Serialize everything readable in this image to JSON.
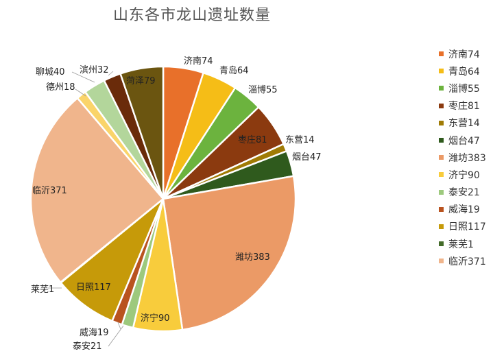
{
  "chart_data": {
    "type": "pie",
    "title": "山东各市龙山遗址数量",
    "categories": [
      "济南",
      "青岛",
      "淄博",
      "枣庄",
      "东营",
      "烟台",
      "潍坊",
      "济宁",
      "泰安",
      "威海",
      "日照",
      "莱芜",
      "临沂",
      "德州",
      "聊城",
      "滨州",
      "菏泽"
    ],
    "values": [
      74,
      64,
      55,
      81,
      14,
      47,
      383,
      90,
      21,
      19,
      117,
      1,
      371,
      18,
      40,
      32,
      79
    ],
    "colors": [
      "#e8702a",
      "#f5bd17",
      "#6cb33e",
      "#8b3a0f",
      "#a07b05",
      "#2f5a1d",
      "#eb9a66",
      "#f8cc3c",
      "#9dc97d",
      "#b9531f",
      "#c69a09",
      "#436b29",
      "#f0b58c",
      "#fad46a",
      "#b3d69b",
      "#6a2b0a",
      "#6b5510"
    ],
    "labels": [
      "济南74",
      "青岛64",
      "淄博55",
      "枣庄81",
      "东营14",
      "烟台47",
      "潍坊383",
      "济宁90",
      "泰安21",
      "威海19",
      "日照117",
      "莱芜1",
      "临沂371",
      "德州18",
      "聊城40",
      "滨州32",
      "菏泽79"
    ],
    "legend": [
      "济南74",
      "青岛64",
      "淄博55",
      "枣庄81",
      "东营14",
      "烟台47",
      "潍坊383",
      "济宁90",
      "泰安21",
      "威海19",
      "日照117",
      "莱芜1",
      "临沂371"
    ],
    "legend_position": "right"
  }
}
